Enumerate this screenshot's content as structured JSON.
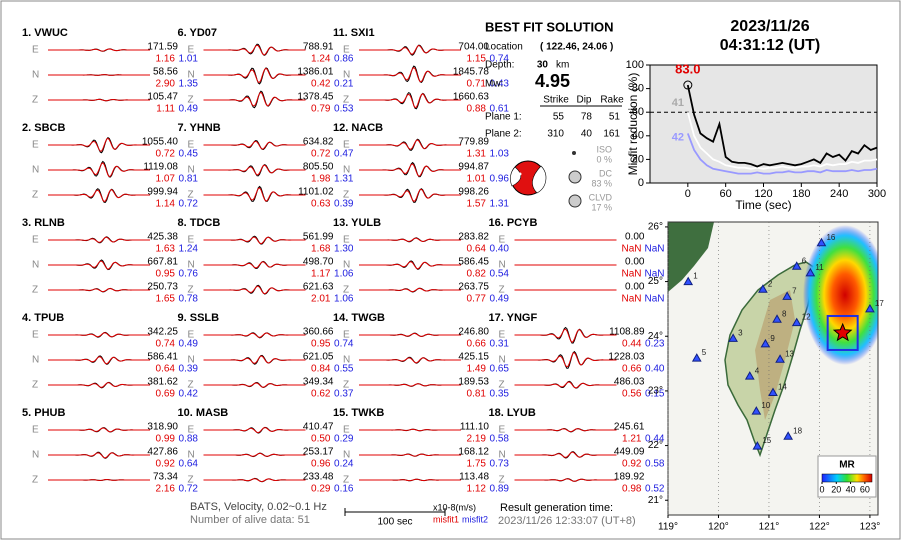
{
  "header": {
    "date": "2023/11/26",
    "time": "04:31:12  (UT)"
  },
  "components": [
    "E",
    "N",
    "Z"
  ],
  "stations": [
    {
      "label": "1.  VWUC",
      "traces": [
        [
          "171.59",
          "1.16",
          "1.01"
        ],
        [
          "58.56",
          "2.90",
          "1.35"
        ],
        [
          "105.47",
          "1.11",
          "0.49"
        ]
      ]
    },
    {
      "label": "2.  SBCB",
      "traces": [
        [
          "1055.40",
          "0.72",
          "0.45"
        ],
        [
          "1119.08",
          "1.07",
          "0.81"
        ],
        [
          "999.94",
          "1.14",
          "0.72"
        ]
      ]
    },
    {
      "label": "3.  RLNB",
      "traces": [
        [
          "425.38",
          "1.63",
          "1.24"
        ],
        [
          "667.81",
          "0.95",
          "0.76"
        ],
        [
          "250.73",
          "1.65",
          "0.78"
        ]
      ]
    },
    {
      "label": "4.  TPUB",
      "traces": [
        [
          "342.25",
          "0.74",
          "0.49"
        ],
        [
          "586.41",
          "0.64",
          "0.39"
        ],
        [
          "381.62",
          "0.69",
          "0.42"
        ]
      ]
    },
    {
      "label": "5.  PHUB",
      "traces": [
        [
          "318.90",
          "0.99",
          "0.88"
        ],
        [
          "427.86",
          "0.92",
          "0.64"
        ],
        [
          "73.34",
          "2.16",
          "0.72"
        ]
      ]
    },
    {
      "label": "6.  YD07",
      "traces": [
        [
          "788.91",
          "1.24",
          "0.86"
        ],
        [
          "1386.01",
          "0.42",
          "0.21"
        ],
        [
          "1378.45",
          "0.79",
          "0.53"
        ]
      ]
    },
    {
      "label": "7.  YHNB",
      "traces": [
        [
          "634.82",
          "0.72",
          "0.47"
        ],
        [
          "805.50",
          "1.98",
          "1.31"
        ],
        [
          "1101.02",
          "0.63",
          "0.39"
        ]
      ]
    },
    {
      "label": "8.  TDCB",
      "traces": [
        [
          "561.99",
          "1.68",
          "1.30"
        ],
        [
          "498.70",
          "1.17",
          "1.06"
        ],
        [
          "621.63",
          "2.01",
          "1.06"
        ]
      ]
    },
    {
      "label": "9.  SSLB",
      "traces": [
        [
          "360.66",
          "0.95",
          "0.74"
        ],
        [
          "621.05",
          "0.84",
          "0.55"
        ],
        [
          "349.34",
          "0.62",
          "0.37"
        ]
      ]
    },
    {
      "label": "10. MASB",
      "traces": [
        [
          "410.47",
          "0.50",
          "0.29"
        ],
        [
          "253.17",
          "0.96",
          "0.24"
        ],
        [
          "233.48",
          "0.29",
          "0.16"
        ]
      ]
    },
    {
      "label": "11. SXI1",
      "traces": [
        [
          "704.00",
          "1.15",
          "0.74"
        ],
        [
          "1845.78",
          "0.71",
          "0.43"
        ],
        [
          "1660.63",
          "0.88",
          "0.61"
        ]
      ]
    },
    {
      "label": "12. NACB",
      "traces": [
        [
          "779.89",
          "1.31",
          "1.03"
        ],
        [
          "994.87",
          "1.01",
          "0.96"
        ],
        [
          "998.26",
          "1.57",
          "1.31"
        ]
      ]
    },
    {
      "label": "13. YULB",
      "traces": [
        [
          "283.82",
          "0.64",
          "0.40"
        ],
        [
          "586.45",
          "0.82",
          "0.54"
        ],
        [
          "263.75",
          "0.77",
          "0.49"
        ]
      ]
    },
    {
      "label": "14. TWGB",
      "traces": [
        [
          "246.80",
          "0.66",
          "0.31"
        ],
        [
          "425.15",
          "1.49",
          "0.65"
        ],
        [
          "189.53",
          "0.81",
          "0.35"
        ]
      ]
    },
    {
      "label": "15. TWKB",
      "traces": [
        [
          "111.10",
          "2.19",
          "0.58"
        ],
        [
          "168.12",
          "1.75",
          "0.73"
        ],
        [
          "113.48",
          "1.12",
          "0.89"
        ]
      ]
    },
    {
      "label": "16. PCYB",
      "traces": [
        [
          "0.00",
          "NaN",
          "NaN"
        ],
        [
          "0.00",
          "NaN",
          "NaN"
        ],
        [
          "0.00",
          "NaN",
          "NaN"
        ]
      ]
    },
    {
      "label": "17. YNGF",
      "traces": [
        [
          "1108.89",
          "0.44",
          "0.23"
        ],
        [
          "1228.03",
          "0.66",
          "0.40"
        ],
        [
          "486.03",
          "0.56",
          "0.15"
        ]
      ]
    },
    {
      "label": "18. LYUB",
      "traces": [
        [
          "245.61",
          "1.21",
          "0.44"
        ],
        [
          "449.09",
          "0.92",
          "0.58"
        ],
        [
          "189.92",
          "0.98",
          "0.52"
        ]
      ]
    }
  ],
  "solution": {
    "title": "BEST FIT SOLUTION",
    "location_label": "Location",
    "location": "( 122.46, 24.06 )",
    "depth_label": "Depth:",
    "depth": "30",
    "depth_unit": "km",
    "mw_label": "Mw:",
    "mw": "4.95",
    "table": {
      "headers": [
        "Strike",
        "Dip",
        "Rake"
      ],
      "rows": [
        {
          "label": "Plane 1:",
          "values": [
            "55",
            "78",
            "51"
          ]
        },
        {
          "label": "Plane 2:",
          "values": [
            "310",
            "40",
            "161"
          ]
        }
      ]
    },
    "components": [
      {
        "name": "ISO",
        "percent": "0 %"
      },
      {
        "name": "DC",
        "percent": "83 %"
      },
      {
        "name": "CLVD",
        "percent": "17 %"
      }
    ]
  },
  "chart_data": {
    "type": "line",
    "ylabel": "Misfit reduction (%)",
    "xlabel": "Time (sec)",
    "x": [
      0,
      10,
      20,
      30,
      40,
      50,
      60,
      70,
      80,
      90,
      100,
      110,
      120,
      130,
      140,
      150,
      160,
      170,
      180,
      190,
      200,
      210,
      220,
      230,
      240,
      250,
      260,
      270,
      280,
      290,
      300
    ],
    "series": [
      {
        "color": "#000000",
        "values": [
          83,
          58,
          42,
          38,
          35,
          50,
          22,
          18,
          17,
          17,
          16,
          14,
          16,
          15,
          16,
          17,
          16,
          15,
          16,
          18,
          20,
          17,
          25,
          22,
          24,
          19,
          27,
          25,
          32,
          28,
          30
        ]
      },
      {
        "color": "#ffffff",
        "values": [
          60,
          40,
          30,
          25,
          20,
          18,
          15,
          14,
          13,
          13,
          12,
          13,
          12,
          13,
          13,
          14,
          13,
          13,
          14,
          14,
          15,
          14,
          16,
          15,
          16,
          16,
          18,
          17,
          19,
          19,
          20
        ]
      },
      {
        "color": "#9999ff",
        "values": [
          42,
          28,
          20,
          15,
          12,
          11,
          10,
          9,
          8,
          8,
          8,
          9,
          8,
          8,
          9,
          9,
          10,
          9,
          9,
          10,
          10,
          9,
          11,
          10,
          10,
          10,
          11,
          10,
          11,
          11,
          12
        ]
      }
    ],
    "hline": 60,
    "annotations": [
      {
        "text": "83.0",
        "color": "#e00000"
      },
      {
        "text": "41",
        "color": "#aaaaaa"
      },
      {
        "text": "42",
        "color": "#9999ff"
      }
    ],
    "xlim": [
      -60,
      300
    ],
    "ylim": [
      0,
      100
    ],
    "xticks": [
      0,
      60,
      120,
      180,
      240,
      300
    ],
    "yticks": [
      0,
      20,
      40,
      60,
      80,
      100
    ]
  },
  "map": {
    "xlim": [
      119,
      123.16
    ],
    "ylim": [
      20.73,
      26.09
    ],
    "xticks": [
      {
        "value": 119,
        "label": "119°"
      },
      {
        "value": 120,
        "label": "120°"
      },
      {
        "value": 121,
        "label": "121°"
      },
      {
        "value": 122,
        "label": "122°"
      },
      {
        "value": 123,
        "label": "123°"
      }
    ],
    "yticks": [
      {
        "value": 21,
        "label": "21°"
      },
      {
        "value": 22,
        "label": "22°"
      },
      {
        "value": 23,
        "label": "23°"
      },
      {
        "value": 24,
        "label": "24°"
      },
      {
        "value": 25,
        "label": "25°"
      },
      {
        "value": 26,
        "label": "26°"
      }
    ],
    "stations": [
      {
        "label": "1",
        "lon": 119.4,
        "lat": 25.0
      },
      {
        "label": "2",
        "lon": 120.88,
        "lat": 24.86
      },
      {
        "label": "3",
        "lon": 120.29,
        "lat": 23.96
      },
      {
        "label": "4",
        "lon": 120.62,
        "lat": 23.27
      },
      {
        "label": "5",
        "lon": 119.57,
        "lat": 23.6
      },
      {
        "label": "6",
        "lon": 121.55,
        "lat": 25.28
      },
      {
        "label": "7",
        "lon": 121.36,
        "lat": 24.73
      },
      {
        "label": "8",
        "lon": 121.16,
        "lat": 24.31
      },
      {
        "label": "9",
        "lon": 120.93,
        "lat": 23.86
      },
      {
        "label": "10",
        "lon": 120.75,
        "lat": 22.63
      },
      {
        "label": "11",
        "lon": 121.82,
        "lat": 25.16
      },
      {
        "label": "12",
        "lon": 121.55,
        "lat": 24.25
      },
      {
        "label": "13",
        "lon": 121.22,
        "lat": 23.58
      },
      {
        "label": "14",
        "lon": 121.08,
        "lat": 22.97
      },
      {
        "label": "15",
        "lon": 120.77,
        "lat": 21.99
      },
      {
        "label": "16",
        "lon": 122.04,
        "lat": 25.71
      },
      {
        "label": "17",
        "lon": 123.0,
        "lat": 24.5
      },
      {
        "label": "18",
        "lon": 121.38,
        "lat": 22.17
      }
    ],
    "epicenter": {
      "lon": 122.46,
      "lat": 24.06
    },
    "colorbar": {
      "label": "MR",
      "lim": [
        0,
        70
      ],
      "ticks": [
        0,
        20,
        40,
        60
      ]
    }
  },
  "footer": {
    "info": "BATS, Velocity, 0.02~0.1 Hz",
    "alive": "Number of alive data: 51",
    "scale": "100 sec",
    "unit": "x10-8(m/s)",
    "misfit1": "misfit1",
    "misfit2": "misfit2",
    "result_label": "Result generation time:",
    "result_time": "2023/11/26 12:33:07 (UT+8)"
  }
}
